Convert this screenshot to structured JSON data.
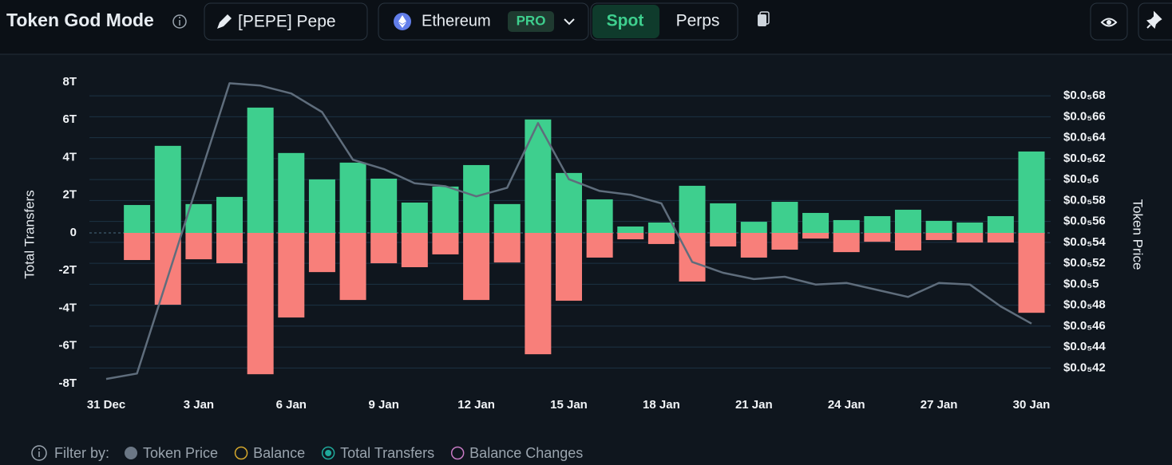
{
  "header": {
    "title": "Token God Mode",
    "token": "[PEPE] Pepe",
    "chain": "Ethereum",
    "badge": "PRO",
    "tabs": [
      "Spot",
      "Perps"
    ],
    "active_tab": 0
  },
  "chart_data": {
    "type": "bar",
    "y_label": "Total Transfers",
    "y2_label": "Token Price",
    "categories": [
      "31 Dec",
      null,
      null,
      "3 Jan",
      null,
      null,
      "6 Jan",
      null,
      null,
      "9 Jan",
      null,
      null,
      "12 Jan",
      null,
      null,
      "15 Jan",
      null,
      null,
      "18 Jan",
      null,
      null,
      "21 Jan",
      null,
      null,
      "24 Jan",
      null,
      null,
      "27 Jan",
      null,
      null,
      "30 Jan"
    ],
    "series": [
      {
        "name": "Token Price",
        "type": "line",
        "axis": "y2",
        "color": "#5f6d7c",
        "values": [
          4.095e-06,
          4.147e-06,
          5.071e-06,
          5.995e-06,
          6.919e-06,
          6.897e-06,
          6.822e-06,
          6.644e-06,
          6.189e-06,
          6.1e-06,
          5.965e-06,
          5.936e-06,
          5.839e-06,
          5.921e-06,
          6.539e-06,
          6.003e-06,
          5.891e-06,
          5.854e-06,
          5.772e-06,
          5.213e-06,
          5.109e-06,
          5.049e-06,
          5.071e-06,
          4.997e-06,
          5.012e-06,
          4.945e-06,
          4.878e-06,
          5.012e-06,
          4.997e-06,
          4.788e-06,
          4.624e-06
        ]
      },
      {
        "type": "bar",
        "color": "#3ecf8e",
        "values": [
          null,
          1480000000000.0,
          4620000000000.0,
          1530000000000.0,
          1910000000000.0,
          6650000000000.0,
          4240000000000.0,
          2840000000000.0,
          3730000000000.0,
          2880000000000.0,
          1610000000000.0,
          2460000000000.0,
          3600000000000.0,
          1530000000000.0,
          6020000000000.0,
          3180000000000.0,
          1780000000000.0,
          340000000000.0,
          550000000000.0,
          2500000000000.0,
          1570000000000.0,
          590000000000.0,
          1650000000000.0,
          1060000000000.0,
          680000000000.0,
          890000000000.0,
          1230000000000.0,
          640000000000.0,
          550000000000.0,
          890000000000.0,
          4320000000000.0
        ]
      },
      {
        "type": "bar",
        "color": "#f87f7a",
        "values": [
          null,
          -1440000000000.0,
          -3810000000000.0,
          -1400000000000.0,
          -1610000000000.0,
          -7500000000000.0,
          -4490000000000.0,
          -2080000000000.0,
          -3560000000000.0,
          -1610000000000.0,
          -1820000000000.0,
          -1140000000000.0,
          -3560000000000.0,
          -1570000000000.0,
          -6440000000000.0,
          -3600000000000.0,
          -1310000000000.0,
          -340000000000.0,
          -590000000000.0,
          -2580000000000.0,
          -720000000000.0,
          -1310000000000.0,
          -890000000000.0,
          -300000000000.0,
          -1020000000000.0,
          -470000000000.0,
          -930000000000.0,
          -380000000000.0,
          -510000000000.0,
          -510000000000.0,
          -4240000000000.0
        ]
      }
    ],
    "ylim": [
      -8000000000000.0,
      8000000000000.0
    ],
    "yticks": [
      {
        "value": 8000000000000.0,
        "label": "8T"
      },
      {
        "value": 6000000000000.0,
        "label": "6T"
      },
      {
        "value": 4000000000000.0,
        "label": "4T"
      },
      {
        "value": 2000000000000.0,
        "label": "2T"
      },
      0,
      {
        "value": -2000000000000.0,
        "label": "-2T"
      },
      {
        "value": -4000000000000.0,
        "label": "-4T"
      },
      {
        "value": -6000000000000.0,
        "label": "-6T"
      },
      {
        "value": -8000000000000.0,
        "label": "-8T"
      }
    ],
    "y2lim": [
      4.05e-06,
      6.93e-06
    ],
    "y2ticks": [
      {
        "value": 6.8e-06,
        "label": "$0.0₅68"
      },
      {
        "value": 6.6e-06,
        "label": "$0.0₅66"
      },
      {
        "value": 6.4e-06,
        "label": "$0.0₅64"
      },
      {
        "value": 6.2e-06,
        "label": "$0.0₅62"
      },
      {
        "value": 6e-06,
        "label": "$0.0₅6"
      },
      {
        "value": 5.8e-06,
        "label": "$0.0₅58"
      },
      {
        "value": 5.6e-06,
        "label": "$0.0₅56"
      },
      {
        "value": 5.4e-06,
        "label": "$0.0₅54"
      },
      {
        "value": 5.2e-06,
        "label": "$0.0₅52"
      },
      {
        "value": 5e-06,
        "label": "$0.0₅5"
      },
      {
        "value": 4.8e-06,
        "label": "$0.0₅48"
      },
      {
        "value": 4.6e-06,
        "label": "$0.0₅46"
      },
      {
        "value": 4.4e-06,
        "label": "$0.0₅44"
      },
      {
        "value": 4.2e-06,
        "label": "$0.0₅42"
      }
    ],
    "grid": true
  },
  "filters": {
    "label": "Filter by:",
    "items": [
      {
        "label": "Token Price",
        "color": "#6b7785",
        "style": "filled"
      },
      {
        "label": "Balance",
        "color": "#d4a72c",
        "style": "hollow"
      },
      {
        "label": "Total Transfers",
        "color": "#1fa89a",
        "style": "selected"
      },
      {
        "label": "Balance Changes",
        "color": "#c77ac4",
        "style": "hollow"
      }
    ]
  }
}
